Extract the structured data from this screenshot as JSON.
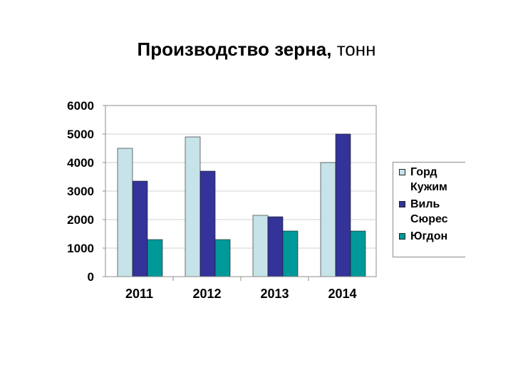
{
  "title": {
    "main": "Производство зерна,",
    "unit": "тонн"
  },
  "chart_data": {
    "type": "bar",
    "title": "Производство зерна, тонн",
    "categories": [
      "2011",
      "2012",
      "2013",
      "2014"
    ],
    "series": [
      {
        "name": "Горд Кужим",
        "legend_lines": [
          "Горд",
          "Кужим"
        ],
        "color": "#c5e3e8",
        "values": [
          4500,
          4900,
          2150,
          4000
        ]
      },
      {
        "name": "Виль Сюрес",
        "legend_lines": [
          "Виль",
          "Сюрес"
        ],
        "color": "#333399",
        "values": [
          3350,
          3700,
          2100,
          5000
        ]
      },
      {
        "name": "Югдон",
        "legend_lines": [
          "Югдон"
        ],
        "color": "#009999",
        "values": [
          1300,
          1300,
          1600,
          1600
        ]
      }
    ],
    "y_ticks": [
      "0",
      "1000",
      "2000",
      "3000",
      "4000",
      "5000",
      "6000"
    ],
    "ylim": [
      0,
      6000
    ],
    "grid": true,
    "legend_position": "right",
    "xlabel": "",
    "ylabel": ""
  }
}
